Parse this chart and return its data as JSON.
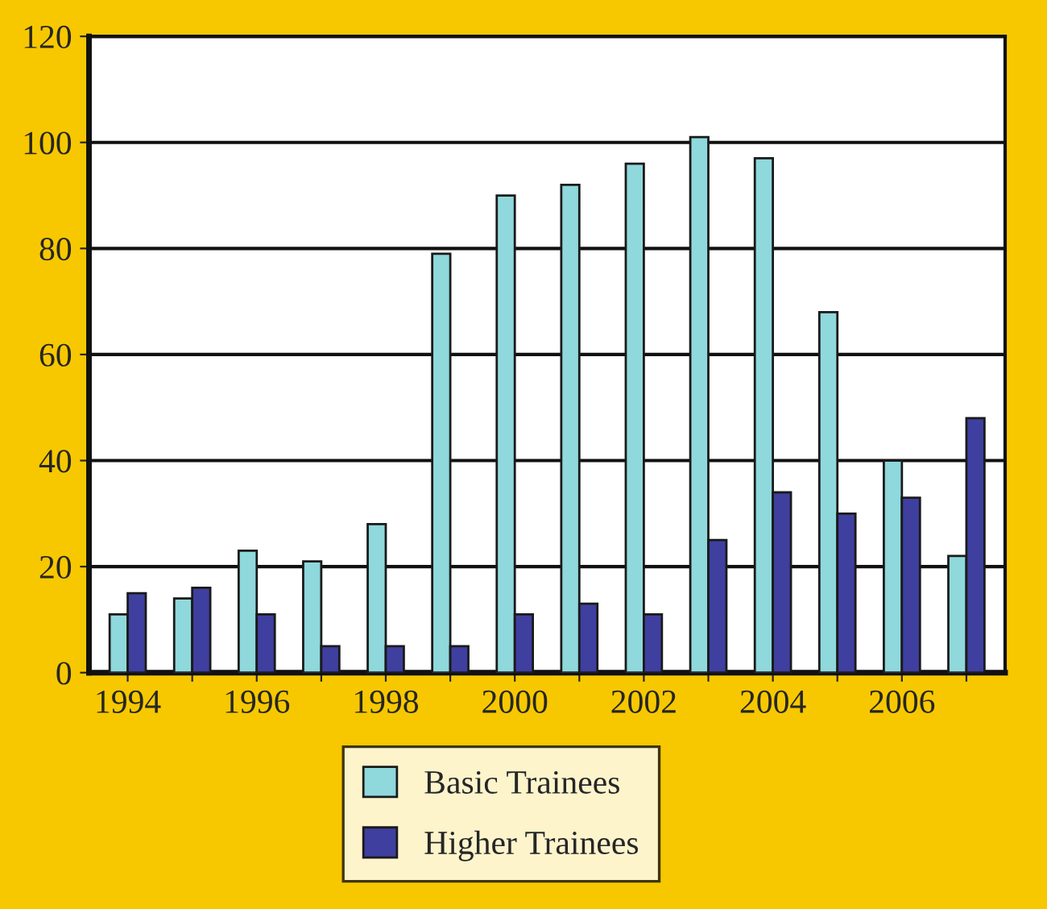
{
  "chart_data": {
    "type": "bar",
    "categories": [
      "1994",
      null,
      "1996",
      null,
      "1998",
      null,
      "2000",
      null,
      "2002",
      null,
      "2004",
      null,
      "2006",
      null
    ],
    "series": [
      {
        "name": "Basic Trainees",
        "color": "#8fd8dc",
        "values": [
          11,
          14,
          23,
          21,
          28,
          79,
          90,
          92,
          96,
          101,
          97,
          68,
          40,
          22
        ]
      },
      {
        "name": "Higher Trainees",
        "color": "#3f3fa0",
        "values": [
          15,
          16,
          11,
          5,
          5,
          5,
          11,
          13,
          11,
          25,
          34,
          30,
          33,
          48
        ]
      }
    ],
    "ylim": [
      0,
      120
    ],
    "yticks": [
      0,
      20,
      40,
      60,
      80,
      100,
      120
    ],
    "grid": "y",
    "legend": "bottom"
  }
}
